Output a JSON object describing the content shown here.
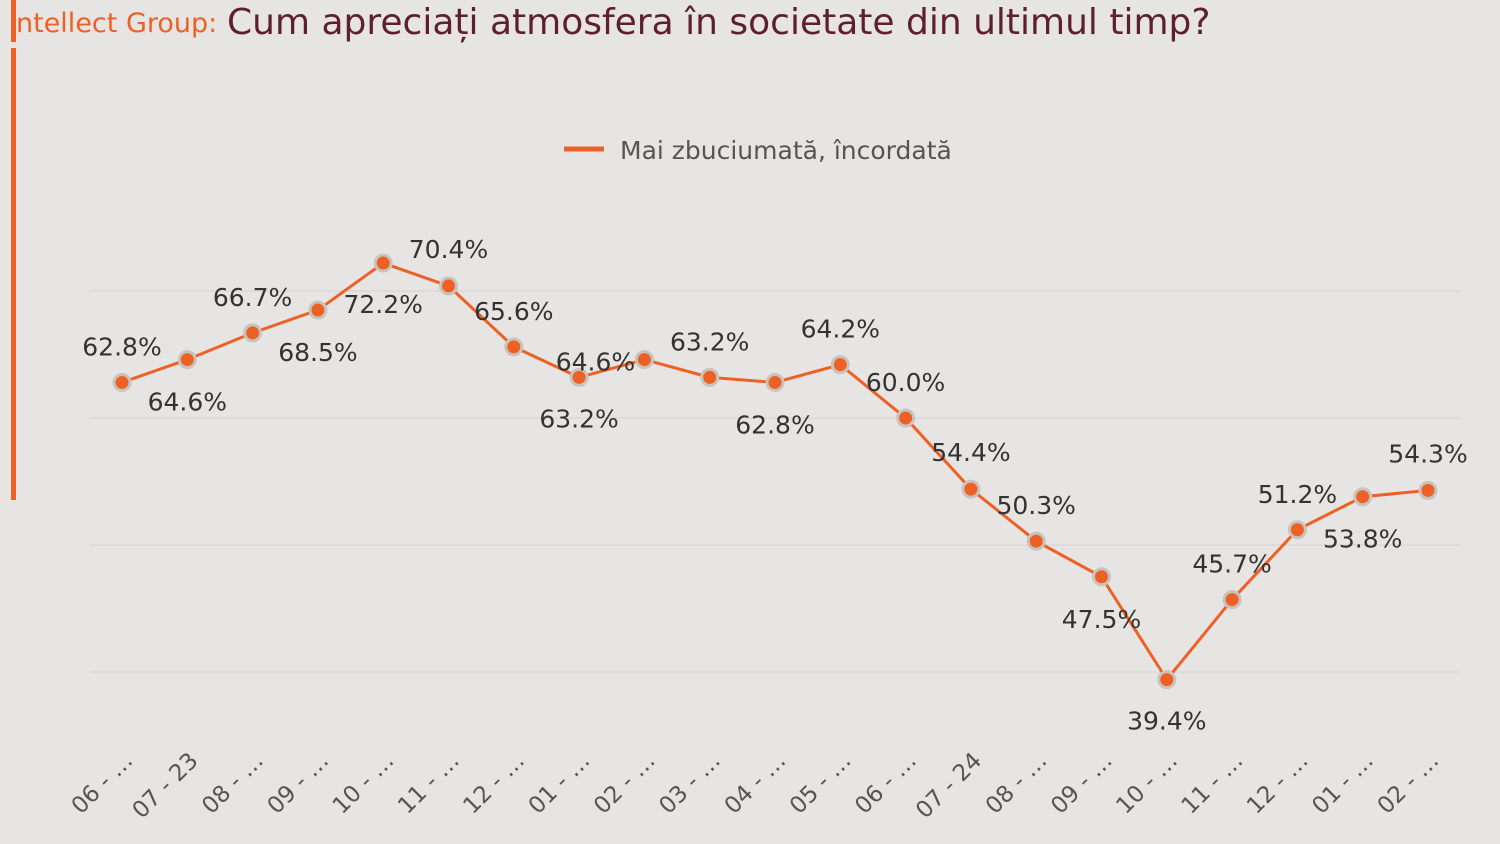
{
  "header": {
    "brand": "ntellect Group:",
    "title": "Cum apreciați atmosfera în societate din ultimul timp?"
  },
  "chart_data": {
    "type": "line",
    "title": "Cum apreciați atmosfera în societate din ultimul timp?",
    "categories": [
      "06 - …",
      "07 - 23",
      "08 - …",
      "09 - …",
      "10 - …",
      "11 - …",
      "12 - …",
      "01 - …",
      "02 - …",
      "03 - …",
      "04 - …",
      "05 - …",
      "06 - …",
      "07 - 24",
      "08 - …",
      "09 - …",
      "10 - …",
      "11 - …",
      "12 - …",
      "01 - …",
      "02 - …"
    ],
    "series": [
      {
        "name": "Mai zbuciumată, încordată",
        "color": "#ee6124",
        "values": [
          62.8,
          64.6,
          66.7,
          68.5,
          72.2,
          70.4,
          65.6,
          63.2,
          64.6,
          63.2,
          62.8,
          64.2,
          60.0,
          54.4,
          50.3,
          47.5,
          39.4,
          45.7,
          51.2,
          53.8,
          54.3
        ],
        "labels": [
          "62.8%",
          "64.6%",
          "66.7%",
          "68.5%",
          "72.2%",
          "70.4%",
          "65.6%",
          "63.2%",
          "64.6%",
          "63.2%",
          "62.8%",
          "64.2%",
          "60.0%",
          "54.4%",
          "50.3%",
          "47.5%",
          "39.4%",
          "45.7%",
          "51.2%",
          "53.8%",
          "54.3%"
        ]
      }
    ],
    "gridlines": [
      40,
      50,
      60,
      70
    ],
    "ylim": [
      30,
      80
    ],
    "legend": "top-center",
    "grid": true
  }
}
